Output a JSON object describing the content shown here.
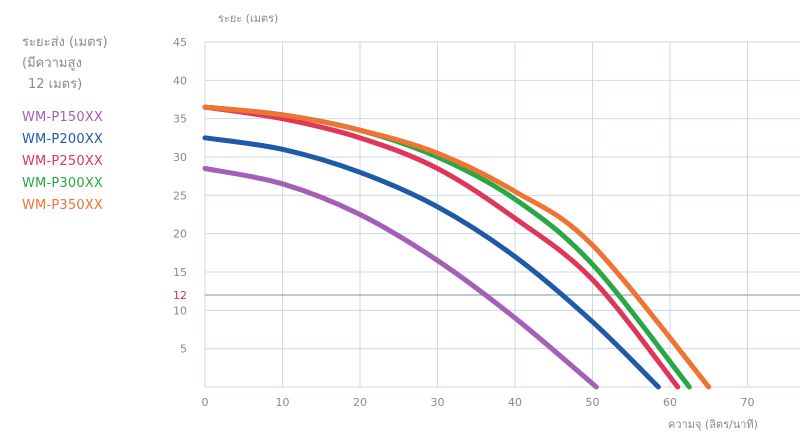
{
  "legend": {
    "title_lines": [
      "ระยะส่ง (เมตร)",
      "(มีความสูง",
      "12 เมตร)"
    ]
  },
  "chart_data": {
    "type": "line",
    "xlabel": "ความจุ (ลิตร/นาที)",
    "ylabel": "ระยะ (เมตร)",
    "xlim": [
      0,
      75
    ],
    "ylim": [
      0,
      45
    ],
    "x_ticks": [
      0,
      10,
      20,
      30,
      40,
      50,
      60,
      70
    ],
    "y_ticks": [
      5,
      10,
      15,
      20,
      25,
      30,
      35,
      40,
      45
    ],
    "reference_line": {
      "y": 12,
      "label": "12",
      "color": "#e0303a"
    },
    "grid": true,
    "legend_position": "left",
    "series": [
      {
        "name": "WM-P150XX",
        "color": "#a45fb6",
        "x": [
          0,
          10,
          20,
          30,
          40,
          50.5
        ],
        "y": [
          28.5,
          26.5,
          22.5,
          16.5,
          9,
          0
        ]
      },
      {
        "name": "WM-P200XX",
        "color": "#1f5aa8",
        "x": [
          0,
          10,
          20,
          30,
          40,
          50,
          58.5
        ],
        "y": [
          32.5,
          31,
          28,
          23.5,
          17,
          8.5,
          0
        ]
      },
      {
        "name": "WM-P250XX",
        "color": "#e0365a",
        "x": [
          0,
          10,
          20,
          30,
          40,
          50,
          61
        ],
        "y": [
          36.5,
          35,
          32.5,
          28.5,
          22,
          14,
          0
        ]
      },
      {
        "name": "WM-P300XX",
        "color": "#28a745",
        "x": [
          0,
          10,
          20,
          30,
          40,
          50,
          62.5
        ],
        "y": [
          36.5,
          35.5,
          33.5,
          30,
          24.5,
          16,
          0
        ]
      },
      {
        "name": "WM-P350XX",
        "color": "#f07333",
        "x": [
          0,
          10,
          20,
          30,
          40,
          50,
          65
        ],
        "y": [
          36.5,
          35.5,
          33.5,
          30.5,
          25.5,
          18.5,
          0
        ]
      }
    ]
  }
}
